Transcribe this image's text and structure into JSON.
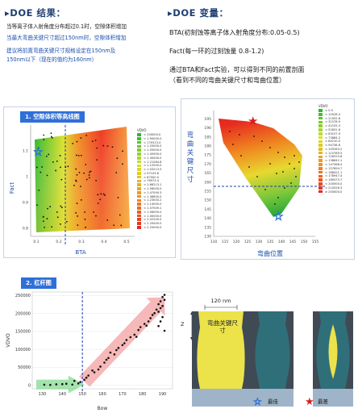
{
  "results": {
    "title": "▸DOE 结果：",
    "lines": [
      "当等离子体入射角度分布超过0.1时，空隙体积增加",
      "当最大弯曲关键尺寸超过150nm时，空隙体积增加",
      "建议将前置弯曲关键尺寸规格设定在150nm及",
      "150nm以下（现在的值约为160nm）"
    ]
  },
  "variables": {
    "title": "▸DOE 变量：",
    "bta": "BTA(初刻蚀等离子体入射角度分布:0.05-0.5)",
    "fact": "Fact(每一环的过刻蚀量 0.8-1.2)",
    "note1": "通过BTA和Fact实验，可以得到不同的前置剖面",
    "note2": "（看到不同的弯曲关键尺寸和弯曲位置）"
  },
  "contour1": {
    "title": "1. 空隙体积等高线图",
    "xlabel": "BTA",
    "ylabel": "Fact",
    "xticks": [
      "0.1",
      "0.2",
      "0.3",
      "0.4",
      "0.5"
    ],
    "yticks": [
      "0.8",
      "0.9",
      "1",
      "1.1"
    ],
    "legend_title": "VDVO",
    "legend": [
      "< 200000.0",
      "< 1.90000.0",
      "< 170313.4",
      "< 1.20000.0",
      "< 1.55000.0",
      "< 1.45900.0",
      "< 1.30000.0",
      "< 1.21084.8",
      "< 1.12000.0",
      "< 1.03213.5",
      "< 97143.8",
      "< 87000.0",
      "< 76973.4",
      "< 1.66213.1",
      "< 1.58000.0",
      "< 1.47090.3",
      "< 1.36800.0",
      "< 1.23000.2",
      "< 1.14000.0",
      "< 1.07049.1",
      "< 1.06000.0",
      "< 1.00000.0",
      "< 2.02200.0",
      "< 2.20000.0",
      "< 2.25000.0"
    ]
  },
  "contour2": {
    "xlabel": "弯曲位置",
    "ylabel": "弯曲关键尺寸",
    "xticks": [
      "110",
      "115",
      "120",
      "125",
      "130",
      "135",
      "140",
      "145",
      "150",
      "155"
    ],
    "yticks": [
      "130",
      "135",
      "140",
      "145",
      "150",
      "155",
      "160",
      "165",
      "170",
      "175",
      "180",
      "185",
      "190",
      "195"
    ],
    "legend_title": "VDVO",
    "legend": [
      "< 0.0",
      "< 10526.3",
      "< 21052.6",
      "< 31578.9",
      "< 42105.3",
      "< 52631.6",
      "< 63157.9",
      "< 73684.2",
      "< 84210.5",
      "< 94736.8",
      "< 105263.2",
      "< 115789.5",
      "< 126315.8",
      "< 136842.1",
      "< 147368.4",
      "< 157894.7",
      "< 168421.1",
      "< 178947.4",
      "< 189473.7",
      "< 200000.0",
      "< 210526.3",
      "≥ 200000.0"
    ]
  },
  "chart_data": {
    "type": "scatter",
    "title": "2. 杠杆图",
    "xlabel": "Bow",
    "ylabel": "VDVO",
    "xlim": [
      125,
      195
    ],
    "ylim": [
      -10000,
      260000
    ],
    "xticks": [
      130,
      140,
      150,
      160,
      170,
      180,
      190
    ],
    "yticks": [
      0,
      50000,
      100000,
      150000,
      200000,
      250000
    ],
    "ytick_labels": [
      "0",
      "50000",
      "100000",
      "150000",
      "200000",
      "250000"
    ],
    "threshold_x": 150,
    "x": [
      131,
      134,
      137,
      140,
      142,
      145,
      146,
      148,
      149,
      151,
      152,
      153,
      155,
      156,
      158,
      159,
      161,
      162,
      163,
      164,
      166,
      167,
      168,
      170,
      171,
      172,
      174,
      176,
      177,
      178,
      179,
      181,
      182,
      183,
      184,
      185,
      186,
      187,
      188,
      188,
      189,
      189,
      190,
      190,
      191,
      191,
      188,
      189,
      190,
      191
    ],
    "y": [
      1500,
      800,
      2500,
      3000,
      4200,
      1800,
      12000,
      5000,
      9000,
      15000,
      21000,
      27000,
      41000,
      36000,
      44000,
      52000,
      63000,
      71000,
      76000,
      91000,
      86000,
      98000,
      104000,
      112000,
      117000,
      126000,
      134000,
      141000,
      135000,
      154000,
      162000,
      171000,
      166000,
      178000,
      187000,
      196000,
      201000,
      211000,
      205000,
      226000,
      215000,
      234000,
      246000,
      221000,
      238000,
      252000,
      165000,
      178000,
      190000,
      152000
    ]
  },
  "diagram": {
    "dimension": "120 nm",
    "z_label": "Z",
    "inner_label": "弯曲关键尺寸",
    "best_label": "最佳",
    "worst_label": "最差"
  },
  "colors": {
    "heading": "#1f3f73",
    "accent_blue": "#2f6fd8",
    "best_star": "#2f6fd8",
    "worst_star": "#d81e1e"
  }
}
